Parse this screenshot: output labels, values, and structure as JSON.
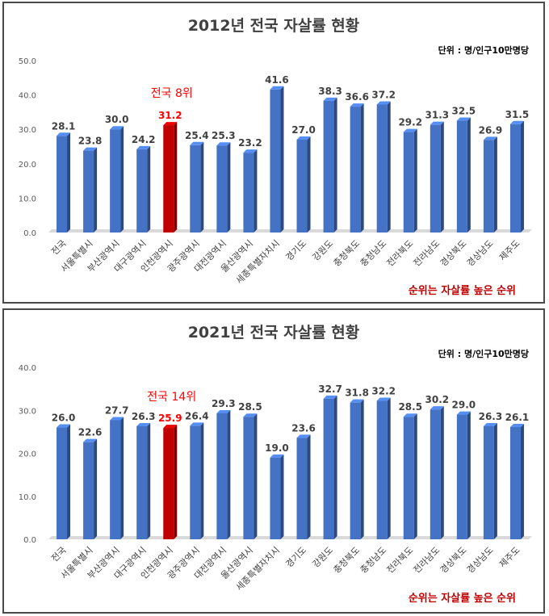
{
  "chart_data": [
    {
      "type": "bar",
      "title": "2012년 전국 자살률 현황",
      "unit_label": "단위 : 명/인구10만명당",
      "categories": [
        "전국",
        "서울특별시",
        "부산광역시",
        "대구광역시",
        "인천광역시",
        "광주광역시",
        "대전광역시",
        "울산광역시",
        "세종특별자치시",
        "경기도",
        "강원도",
        "충청북도",
        "충청남도",
        "전라북도",
        "전라남도",
        "경상북도",
        "경상남도",
        "제주도"
      ],
      "values": [
        28.1,
        23.8,
        30.0,
        24.2,
        31.2,
        25.4,
        25.3,
        23.2,
        41.6,
        27.0,
        38.3,
        36.6,
        37.2,
        29.2,
        31.3,
        32.5,
        26.9,
        31.5
      ],
      "value_labels": [
        "28.1",
        "23.8",
        "30.0",
        "24.2",
        "31.2",
        "25.4",
        "25.3",
        "23.2",
        "41.6",
        "27.0",
        "38.3",
        "36.6",
        "37.2",
        "29.2",
        "31.3",
        "32.5",
        "26.9",
        "31.5"
      ],
      "ylim": [
        0,
        50
      ],
      "yticks": [
        "0.0",
        "10.0",
        "20.0",
        "30.0",
        "40.0",
        "50.0"
      ],
      "highlight_index": 4,
      "highlight_label": "전국 8위",
      "footnote": "순위는 자살률 높은 순위",
      "colors": {
        "bar": "#4472c4",
        "highlight": "#c00000",
        "accent_text": "#ff0000",
        "footnote": "#c00000"
      },
      "xlabel": "",
      "ylabel": "",
      "grid": false
    },
    {
      "type": "bar",
      "title": "2021년 전국 자살률 현황",
      "unit_label": "단위 : 명/인구10만명당",
      "categories": [
        "전국",
        "서울특별시",
        "부산광역시",
        "대구광역시",
        "인천광역시",
        "광주광역시",
        "대전광역시",
        "울산광역시",
        "세종특별자치시",
        "경기도",
        "강원도",
        "충청북도",
        "충청남도",
        "전라북도",
        "전라남도",
        "경상북도",
        "경상남도",
        "제주도"
      ],
      "values": [
        26.0,
        22.6,
        27.7,
        26.3,
        25.9,
        26.4,
        29.3,
        28.5,
        19.0,
        23.6,
        32.7,
        31.8,
        32.2,
        28.5,
        30.2,
        29.0,
        26.3,
        26.1
      ],
      "value_labels": [
        "26.0",
        "22.6",
        "27.7",
        "26.3",
        "25.9",
        "26.4",
        "29.3",
        "28.5",
        "19.0",
        "23.6",
        "32.7",
        "31.8",
        "32.2",
        "28.5",
        "30.2",
        "29.0",
        "26.3",
        "26.1"
      ],
      "ylim": [
        0,
        40
      ],
      "yticks": [
        "0.0",
        "10.0",
        "20.0",
        "30.0",
        "40.0"
      ],
      "highlight_index": 4,
      "highlight_label": "전국 14위",
      "footnote": "순위는 자살률 높은 순위",
      "colors": {
        "bar": "#4472c4",
        "highlight": "#c00000",
        "accent_text": "#ff0000",
        "footnote": "#c00000"
      },
      "xlabel": "",
      "ylabel": "",
      "grid": false
    }
  ]
}
